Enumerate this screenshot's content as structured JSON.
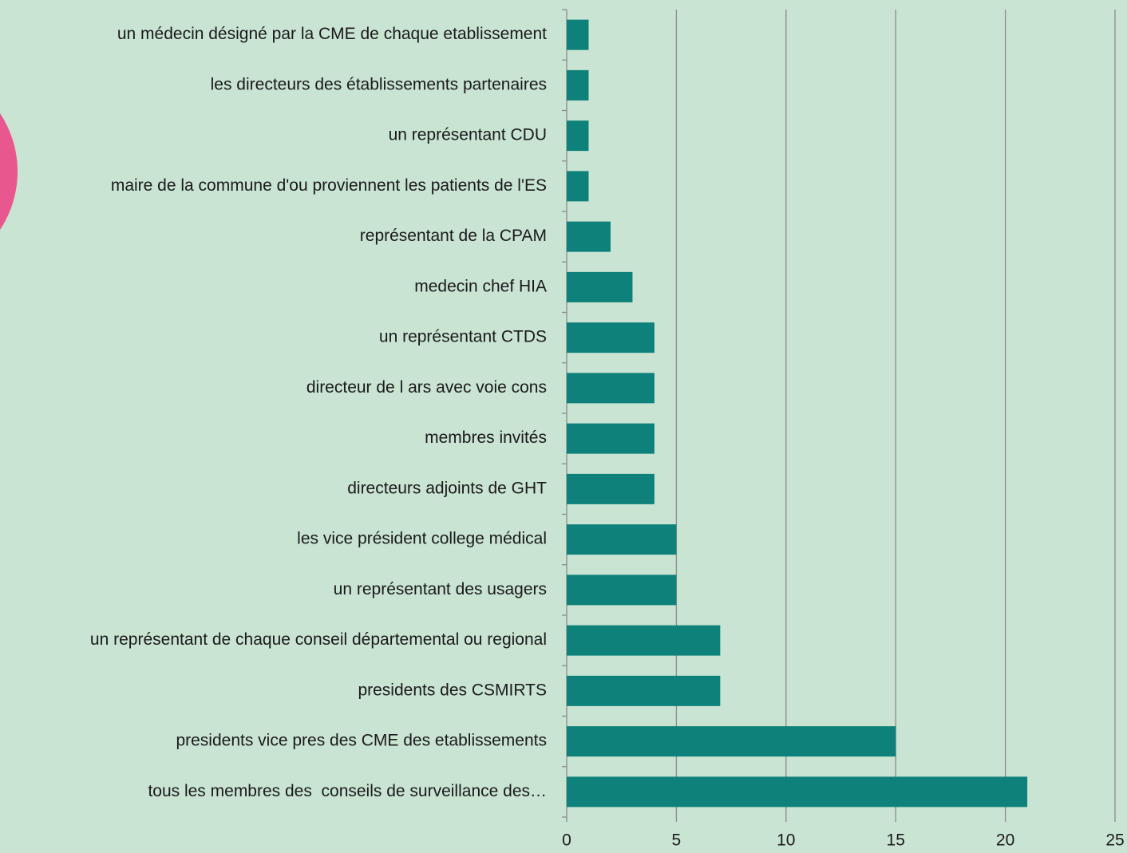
{
  "chart_data": {
    "type": "bar",
    "orientation": "horizontal",
    "categories": [
      "un médecin désigné par la CME de chaque etablissement",
      "les directeurs des établissements partenaires",
      "un représentant CDU",
      "maire de la commune d'ou proviennent les patients de l'ES",
      "représentant de la CPAM",
      "medecin chef HIA",
      "un représentant CTDS",
      "directeur de l ars avec voie cons",
      "membres invités",
      "directeurs adjoints de GHT",
      "les vice président college médical",
      "un représentant des usagers",
      "un représentant de chaque conseil départemental ou regional",
      "presidents des CSMIRTS",
      "presidents vice pres des CME des etablissements",
      "tous les membres des  conseils de surveillance des…"
    ],
    "values": [
      1,
      1,
      1,
      1,
      2,
      3,
      4,
      4,
      4,
      4,
      5,
      5,
      7,
      7,
      15,
      21
    ],
    "color": "#0e817a",
    "xlim": [
      0,
      25
    ],
    "xticks": [
      0,
      5,
      10,
      15,
      20,
      25
    ],
    "grid": true
  }
}
